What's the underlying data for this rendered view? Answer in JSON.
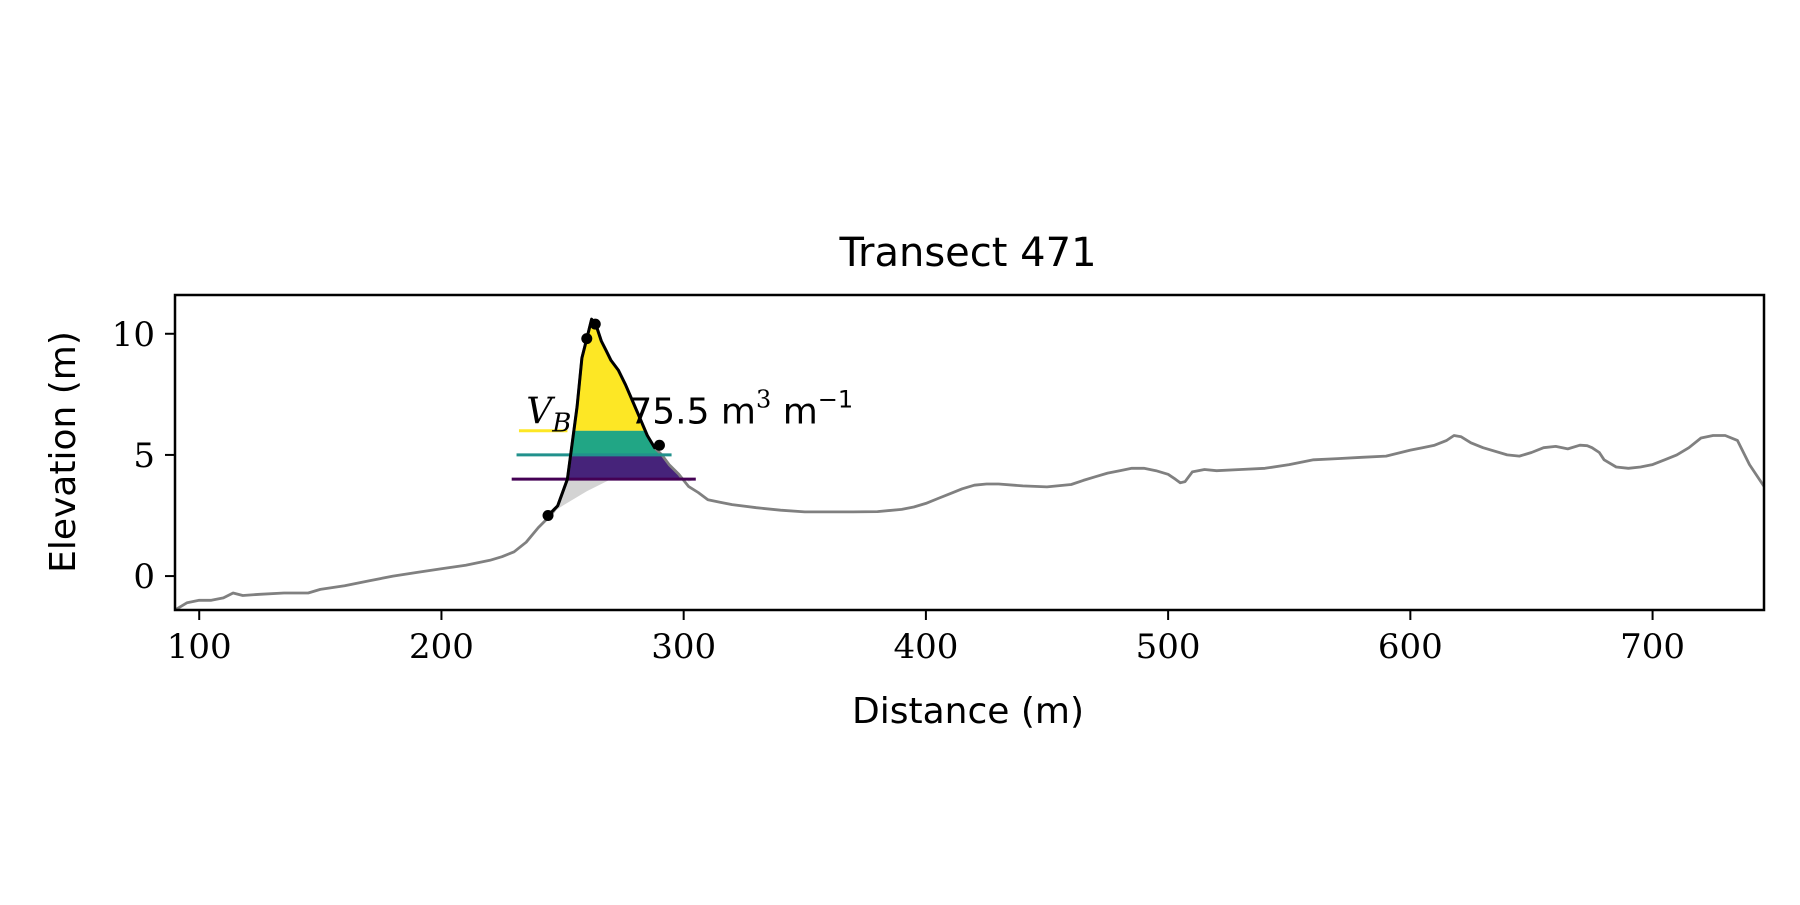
{
  "chart_data": {
    "type": "line",
    "title": "Transect 471",
    "xlabel": "Distance (m)",
    "ylabel": "Elevation (m)",
    "xlim": [
      90,
      746
    ],
    "ylim": [
      -1.4,
      11.6
    ],
    "xticks": [
      100,
      200,
      300,
      400,
      500,
      600,
      700
    ],
    "yticks": [
      0,
      5,
      10
    ],
    "grid": false,
    "legend": "none",
    "colors": {
      "profile": "#808080",
      "fill_under": "#d3d3d3",
      "outline": "#000000",
      "band_top": "#fde725",
      "band_mid": "#21a685",
      "band_bottom": "#440154",
      "band_bottom_fill": "#46237a",
      "level_top": "#fde725",
      "level_mid": "#21918c",
      "level_bottom": "#440154"
    },
    "profile": {
      "x": [
        90,
        95,
        100,
        105,
        110,
        114,
        118,
        125,
        135,
        145,
        150,
        160,
        170,
        180,
        190,
        200,
        210,
        220,
        225,
        230,
        235,
        240,
        245,
        248,
        252,
        256,
        258,
        260,
        262,
        264,
        266,
        268,
        270,
        273,
        276,
        279,
        282,
        285,
        288,
        291,
        294,
        298,
        302,
        306,
        310,
        315,
        320,
        330,
        340,
        350,
        360,
        370,
        380,
        390,
        395,
        400,
        405,
        410,
        415,
        420,
        425,
        430,
        440,
        450,
        460,
        465,
        470,
        475,
        480,
        485,
        490,
        495,
        500,
        503,
        505,
        507,
        510,
        515,
        520,
        530,
        540,
        550,
        560,
        570,
        580,
        590,
        600,
        605,
        610,
        615,
        618,
        621,
        625,
        630,
        640,
        645,
        650,
        655,
        660,
        665,
        670,
        673,
        675,
        678,
        680,
        685,
        690,
        695,
        700,
        705,
        710,
        715,
        720,
        725,
        730,
        735,
        740,
        746
      ],
      "y": [
        -1.4,
        -1.1,
        -1.0,
        -1.0,
        -0.9,
        -0.7,
        -0.8,
        -0.75,
        -0.7,
        -0.7,
        -0.55,
        -0.4,
        -0.2,
        0.0,
        0.15,
        0.3,
        0.45,
        0.65,
        0.8,
        1.0,
        1.4,
        2.0,
        2.5,
        2.9,
        4.0,
        7.0,
        9.0,
        9.8,
        10.6,
        10.3,
        9.7,
        9.3,
        8.9,
        8.5,
        7.9,
        7.2,
        6.5,
        5.8,
        5.3,
        5.0,
        4.6,
        4.2,
        3.7,
        3.45,
        3.15,
        3.05,
        2.95,
        2.82,
        2.72,
        2.65,
        2.65,
        2.65,
        2.66,
        2.75,
        2.85,
        3.0,
        3.2,
        3.4,
        3.6,
        3.75,
        3.8,
        3.8,
        3.72,
        3.68,
        3.78,
        3.95,
        4.1,
        4.25,
        4.35,
        4.45,
        4.45,
        4.35,
        4.2,
        4.0,
        3.85,
        3.9,
        4.3,
        4.4,
        4.35,
        4.4,
        4.45,
        4.6,
        4.8,
        4.85,
        4.9,
        4.95,
        5.2,
        5.3,
        5.4,
        5.6,
        5.8,
        5.75,
        5.5,
        5.3,
        5.0,
        4.95,
        5.1,
        5.3,
        5.35,
        5.25,
        5.4,
        5.38,
        5.3,
        5.1,
        4.8,
        4.5,
        4.45,
        4.5,
        4.6,
        4.8,
        5.0,
        5.3,
        5.7,
        5.8,
        5.8,
        5.6,
        4.6,
        3.7
      ]
    },
    "fill_under_polygon": {
      "x": [
        244,
        248,
        252,
        256,
        258,
        260,
        262,
        264,
        266,
        268,
        270,
        273,
        276,
        279,
        282,
        285,
        288,
        291,
        294,
        298,
        302,
        305,
        300,
        290,
        280,
        270,
        260,
        250
      ],
      "y": [
        2.5,
        2.9,
        4.0,
        7.0,
        9.0,
        9.8,
        10.6,
        10.3,
        9.7,
        9.3,
        8.9,
        8.5,
        7.9,
        7.2,
        6.5,
        5.8,
        5.3,
        5.0,
        4.6,
        4.2,
        3.9,
        4.0,
        4.0,
        4.0,
        4.0,
        4.0,
        3.5,
        2.9
      ]
    },
    "bands": [
      {
        "y_bottom": 4.0,
        "y_top": 5.0,
        "color_key": "band_bottom_fill"
      },
      {
        "y_bottom": 5.0,
        "y_top": 6.0,
        "color_key": "band_mid"
      },
      {
        "y_bottom": 6.0,
        "y_top": 10.6,
        "color_key": "band_top"
      }
    ],
    "levels": [
      {
        "y": 6.0,
        "x_start": 232,
        "x_end": 252,
        "color_key": "level_top"
      },
      {
        "y": 5.0,
        "x_start": 231,
        "x_end": 295,
        "color_key": "level_mid"
      },
      {
        "y": 4.0,
        "x_start": 229,
        "x_end": 305,
        "color_key": "level_bottom"
      }
    ],
    "outline": {
      "x": [
        244,
        248,
        252,
        256,
        258,
        260,
        262,
        264,
        266,
        268,
        270,
        273,
        276,
        279,
        282,
        285,
        288,
        290
      ],
      "y": [
        2.5,
        2.9,
        4.0,
        7.0,
        9.0,
        9.8,
        10.6,
        10.3,
        9.7,
        9.3,
        8.9,
        8.5,
        7.9,
        7.2,
        6.5,
        5.8,
        5.3,
        5.4
      ]
    },
    "markers": {
      "x": [
        244,
        260,
        263.5,
        290
      ],
      "y": [
        2.5,
        9.8,
        10.4,
        5.4
      ]
    },
    "annotation": {
      "text_main": "V",
      "text_sub": "B",
      "text_value": "75.5 m",
      "text_unit_mid": " m",
      "text_exp1": "3",
      "text_exp2": "−1",
      "x": 235,
      "y": 6.3
    }
  }
}
